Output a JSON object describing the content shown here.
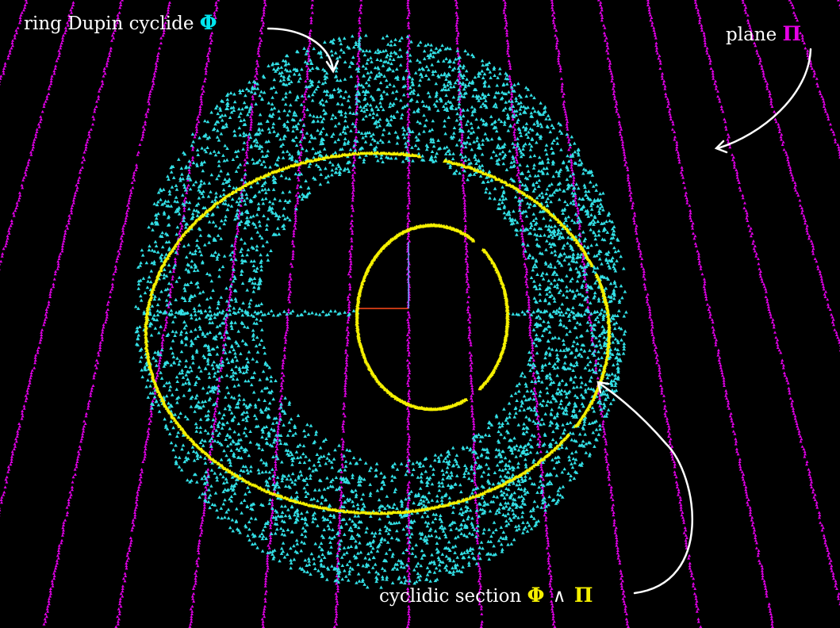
{
  "labels": {
    "cyclide": {
      "text": "ring Dupin cyclide",
      "symbol": "Φ",
      "symbol_color": "#00e5ee"
    },
    "plane": {
      "text": "plane",
      "symbol": "Π",
      "symbol_color": "#e600e6"
    },
    "section": {
      "text": "cyclidic section",
      "symbol_a": "Φ",
      "operator": "∧",
      "symbol_b": "Π",
      "symbol_color": "#f5f000"
    }
  },
  "colors": {
    "background": "#000000",
    "cyclide_points": "#33e0e6",
    "plane_points": "#e000e6",
    "section_curve": "#f5f000",
    "axis_red": "#ff4a1a",
    "axis_blue": "#6aa0ff",
    "arrows": "#ffffff"
  }
}
